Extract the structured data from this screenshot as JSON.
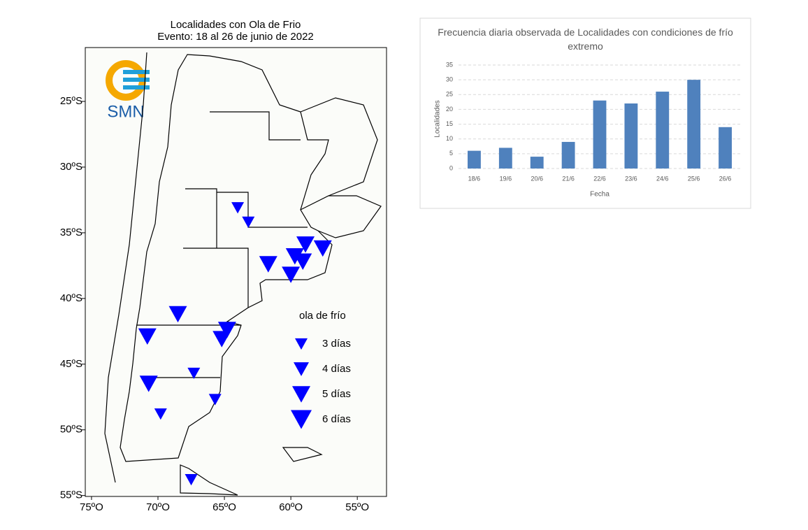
{
  "map": {
    "title": [
      "Localidades con Ola de Frio",
      "Evento: 18 al 26 de junio de 2022"
    ],
    "logo": "SMN",
    "lonlim": [
      -75.47,
      -52.8
    ],
    "latlim": [
      -20.9,
      -55.07
    ],
    "lonticks": [
      {
        "value": -75,
        "label": "75ºO"
      },
      {
        "value": -70,
        "label": "70ºO"
      },
      {
        "value": -65,
        "label": "65ºO"
      },
      {
        "value": -60,
        "label": "60ºO"
      },
      {
        "value": -55,
        "label": "55ºO"
      }
    ],
    "latticks": [
      {
        "value": -25,
        "label": "25ºS"
      },
      {
        "value": -30,
        "label": "30ºS"
      },
      {
        "value": -35,
        "label": "35ºS"
      },
      {
        "value": -40,
        "label": "40ºS"
      },
      {
        "value": -45,
        "label": "45ºS"
      },
      {
        "value": -50,
        "label": "50ºS"
      },
      {
        "value": -55,
        "label": "55ºS"
      }
    ],
    "color": "#0000ff",
    "legend_title": "ola de frío",
    "legend": [
      {
        "days": 3,
        "label": "3 días"
      },
      {
        "days": 4,
        "label": "4 días"
      },
      {
        "days": 5,
        "label": "5 días"
      },
      {
        "days": 6,
        "label": "6 días"
      }
    ],
    "markers": [
      {
        "lon": -64.0,
        "lat": -33.1,
        "days": 3
      },
      {
        "lon": -63.2,
        "lat": -34.2,
        "days": 3
      },
      {
        "lon": -58.9,
        "lat": -35.9,
        "days": 5
      },
      {
        "lon": -57.6,
        "lat": -36.2,
        "days": 5
      },
      {
        "lon": -59.7,
        "lat": -36.8,
        "days": 5
      },
      {
        "lon": -59.1,
        "lat": -37.2,
        "days": 5
      },
      {
        "lon": -61.7,
        "lat": -37.4,
        "days": 5
      },
      {
        "lon": -60.0,
        "lat": -38.2,
        "days": 5
      },
      {
        "lon": -68.5,
        "lat": -41.2,
        "days": 5
      },
      {
        "lon": -64.8,
        "lat": -42.4,
        "days": 5
      },
      {
        "lon": -70.8,
        "lat": -42.9,
        "days": 5
      },
      {
        "lon": -65.2,
        "lat": -43.1,
        "days": 5
      },
      {
        "lon": -70.7,
        "lat": -46.5,
        "days": 5
      },
      {
        "lon": -67.3,
        "lat": -45.7,
        "days": 3
      },
      {
        "lon": -65.7,
        "lat": -47.7,
        "days": 3
      },
      {
        "lon": -69.8,
        "lat": -48.8,
        "days": 3
      },
      {
        "lon": -67.5,
        "lat": -53.8,
        "days": 3
      }
    ]
  },
  "chart_data": {
    "type": "bar",
    "title": "Frecuencia diaria observada de Localidades con condiciones de frío extremo",
    "x_label": "Fecha",
    "y_label": "Localidades",
    "categories": [
      "18/6",
      "19/6",
      "20/6",
      "21/6",
      "22/6",
      "23/6",
      "24/6",
      "25/6",
      "26/6"
    ],
    "values": [
      6,
      7,
      4,
      9,
      23,
      22,
      26,
      30,
      14
    ],
    "color": "#4f81bd",
    "ylim": [
      0,
      35
    ],
    "yticks": [
      0,
      5,
      10,
      15,
      20,
      25,
      30,
      35
    ],
    "grid": true
  }
}
